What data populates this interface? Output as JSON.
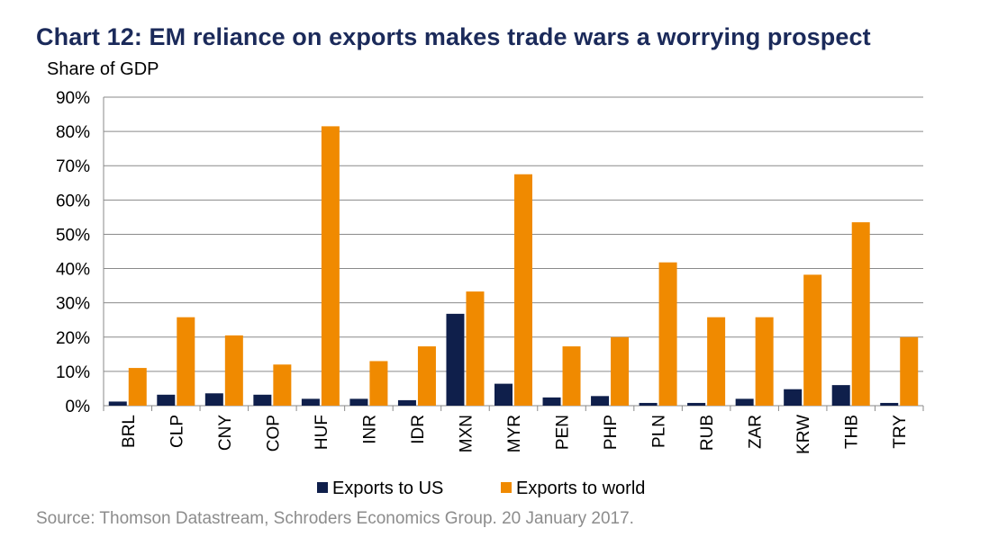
{
  "chart_data": {
    "type": "bar",
    "title": "Chart 12: EM reliance on exports makes trade wars a worrying prospect",
    "ylabel": "Share of GDP",
    "xlabel": "",
    "source": "Source: Thomson Datastream, Schroders Economics Group. 20 January 2017.",
    "ylim": [
      0,
      90
    ],
    "yticks": [
      "0%",
      "10%",
      "20%",
      "30%",
      "40%",
      "50%",
      "60%",
      "70%",
      "80%",
      "90%"
    ],
    "grid": true,
    "legend_position": "bottom",
    "categories": [
      "BRL",
      "CLP",
      "CNY",
      "COP",
      "HUF",
      "INR",
      "IDR",
      "MXN",
      "MYR",
      "PEN",
      "PHP",
      "PLN",
      "RUB",
      "ZAR",
      "KRW",
      "THB",
      "TRY"
    ],
    "series": [
      {
        "name": "Exports to US",
        "color": "#0f1f4b",
        "values": [
          1.2,
          3.2,
          3.6,
          3.2,
          2.0,
          2.0,
          1.6,
          26.8,
          6.4,
          2.4,
          2.8,
          0.8,
          0.8,
          2.0,
          4.8,
          6.0,
          0.8
        ]
      },
      {
        "name": "Exports to world",
        "color": "#f08a00",
        "values": [
          11.0,
          25.8,
          20.5,
          12.0,
          81.5,
          13.0,
          17.3,
          33.3,
          67.5,
          17.3,
          20.0,
          41.8,
          25.8,
          25.8,
          38.2,
          53.5,
          20.0
        ]
      }
    ]
  }
}
